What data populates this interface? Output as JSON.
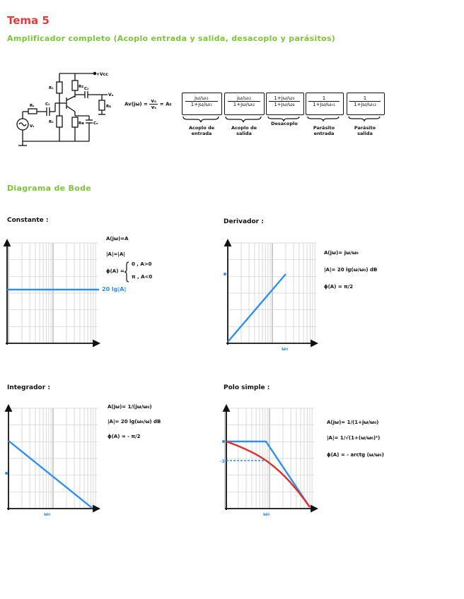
{
  "header": {
    "title": "Tema 5",
    "subtitle": "Amplificador completo (Acoplo entrada y salida, desacoplo y parásitos)"
  },
  "circuit": {
    "labels": {
      "vcc": "+Vcc",
      "r1": "R₁",
      "r2": "R₂",
      "rc": "Rc",
      "re": "Re",
      "c1": "C₁",
      "c2": "C₂",
      "ce": "Cₑ",
      "rs": "Rₛ",
      "rl": "Rʟ",
      "vo": "Vₒ",
      "vs": "Vₛ"
    }
  },
  "transfer": {
    "lhs": "Av(jω) =",
    "lhs_num": "vₒ",
    "lhs_den": "vₛ",
    "gain": "= A₀",
    "factors": [
      {
        "num": "jω/ωᵢ₁",
        "den": "1+jω/ωᵢ₁",
        "caption1": "Acoplo de",
        "caption2": "entrada"
      },
      {
        "num": "jω/ωᵢ₂",
        "den": "1+jω/ωᵢ₂",
        "caption1": "Acoplo de",
        "caption2": "salida"
      },
      {
        "num": "1+jω/ω₃",
        "den": "1+jω/ω₄",
        "caption1": "Desacoplo",
        "caption2": ""
      },
      {
        "num": "1",
        "den": "1+jω/ωₛ₁",
        "caption1": "Parásito",
        "caption2": "entrada"
      },
      {
        "num": "1",
        "den": "1+jω/ωₛ₂",
        "caption1": "Parásito",
        "caption2": "salida"
      }
    ]
  },
  "bode": {
    "title": "Diagrama de Bode",
    "constante": {
      "title": "Constante :",
      "eq1": "A(jω)=A",
      "eq2": "|A|=|A|",
      "eq3": "ϕ(A) =",
      "case1": "0 , A>0",
      "case2": "π , A<0",
      "line_label": "20 lg|A|"
    },
    "derivador": {
      "title": "Derivador :",
      "eq1": "A(jω)= jω/ω₀",
      "eq2": "|A|= 20 lg(ω/ω₀) dB",
      "eq3": "ϕ(A) = π/2",
      "tick": "ω₀",
      "zero": "0"
    },
    "integrador": {
      "title": "Integrador :",
      "eq1": "A(jω)= 1/(jω/ω₀)",
      "eq2": "|A|= 20 lg(ω₀/ω) dB",
      "eq3": "ϕ(A) = - π/2",
      "tick": "ω₀",
      "zero": "0"
    },
    "polo": {
      "title": "Polo simple :",
      "eq1": "A(jω)= 1/(1+jω/ω₀)",
      "eq2": "|A|= 1/√(1+(ω/ω₀)²)",
      "eq3": "ϕ(A) = - arctg (ω/ω₀)",
      "tick": "ω₀",
      "zero": "0",
      "minus3": "-3"
    }
  },
  "colors": {
    "red": "#e23b3b",
    "green": "#7cc43a",
    "blue": "#2f8ff0",
    "curve": "#d93030"
  }
}
